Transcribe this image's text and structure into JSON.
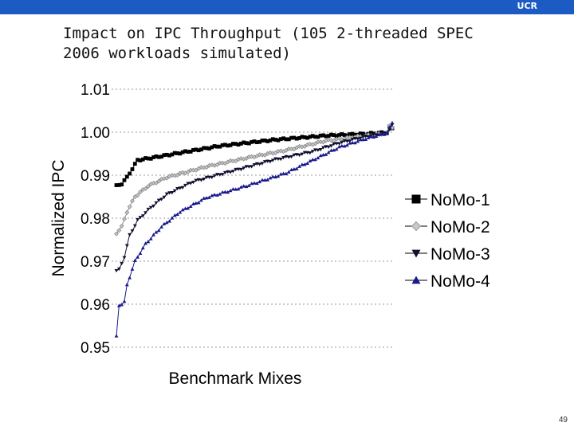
{
  "header": {
    "org_label": "UCR"
  },
  "slide": {
    "title": "Impact on IPC Throughput (105 2-threaded SPEC 2006 workloads simulated)",
    "page_number": "49"
  },
  "colors": {
    "header_bar": "#1d5bc4",
    "series": [
      "#000000",
      "#8a8a8a",
      "#101030",
      "#1a1a8c"
    ]
  },
  "chart_data": {
    "type": "line",
    "title": "",
    "xlabel": "Benchmark Mixes",
    "ylabel": "Normalized IPC",
    "ylim": [
      0.95,
      1.01
    ],
    "yticks": [
      1.01,
      1.0,
      0.99,
      0.98,
      0.97,
      0.96,
      0.95
    ],
    "ytick_labels": [
      "1.01",
      "1.00",
      "0.99",
      "0.98",
      "0.97",
      "0.96",
      "0.95"
    ],
    "x_count": 105,
    "grid": "horizontal dotted",
    "legend_position": "right",
    "series": [
      {
        "name": "NoMo-1",
        "marker": "square",
        "color": "#000000",
        "anchors": [
          [
            1,
            0.9875
          ],
          [
            3,
            0.988
          ],
          [
            5,
            0.9895
          ],
          [
            7,
            0.9915
          ],
          [
            9,
            0.9935
          ],
          [
            14,
            0.994
          ],
          [
            25,
            0.9952
          ],
          [
            40,
            0.9968
          ],
          [
            60,
            0.9982
          ],
          [
            80,
            0.9992
          ],
          [
            95,
            0.9996
          ],
          [
            103,
            0.9999
          ],
          [
            104,
            1.0012
          ],
          [
            105,
            1.0008
          ]
        ]
      },
      {
        "name": "NoMo-2",
        "marker": "diamond",
        "color": "#8a8a8a",
        "anchors": [
          [
            1,
            0.9765
          ],
          [
            3,
            0.978
          ],
          [
            5,
            0.9815
          ],
          [
            8,
            0.985
          ],
          [
            13,
            0.9875
          ],
          [
            20,
            0.9895
          ],
          [
            35,
            0.992
          ],
          [
            50,
            0.994
          ],
          [
            65,
            0.9958
          ],
          [
            80,
            0.998
          ],
          [
            95,
            0.9992
          ],
          [
            103,
            0.9998
          ],
          [
            104,
            1.0015
          ],
          [
            105,
            1.0012
          ]
        ]
      },
      {
        "name": "NoMo-3",
        "marker": "triangle-down",
        "color": "#101030",
        "anchors": [
          [
            1,
            0.9678
          ],
          [
            2,
            0.968
          ],
          [
            3,
            0.9695
          ],
          [
            4,
            0.971
          ],
          [
            6,
            0.976
          ],
          [
            9,
            0.9795
          ],
          [
            14,
            0.9825
          ],
          [
            20,
            0.9855
          ],
          [
            30,
            0.9885
          ],
          [
            45,
            0.991
          ],
          [
            60,
            0.9935
          ],
          [
            75,
            0.9955
          ],
          [
            85,
            0.9975
          ],
          [
            95,
            0.999
          ],
          [
            103,
            0.9998
          ],
          [
            105,
            1.0016
          ]
        ]
      },
      {
        "name": "NoMo-4",
        "marker": "triangle-up",
        "color": "#1a1a8c",
        "anchors": [
          [
            1,
            0.9525
          ],
          [
            2,
            0.9598
          ],
          [
            3,
            0.96
          ],
          [
            4,
            0.9605
          ],
          [
            5,
            0.9645
          ],
          [
            8,
            0.97
          ],
          [
            12,
            0.974
          ],
          [
            18,
            0.978
          ],
          [
            25,
            0.9815
          ],
          [
            35,
            0.9848
          ],
          [
            50,
            0.9875
          ],
          [
            65,
            0.9905
          ],
          [
            75,
            0.9935
          ],
          [
            85,
            0.9965
          ],
          [
            95,
            0.9985
          ],
          [
            103,
            0.9998
          ],
          [
            105,
            1.0022
          ]
        ]
      }
    ]
  }
}
